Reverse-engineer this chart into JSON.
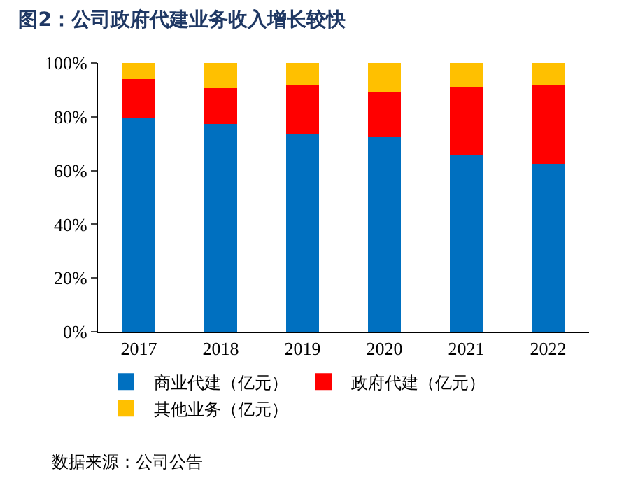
{
  "chart_data": {
    "type": "bar",
    "title": "图2：公司政府代建业务收入增长较快",
    "categories": [
      "2017",
      "2018",
      "2019",
      "2020",
      "2021",
      "2022"
    ],
    "series": [
      {
        "name": "商业代建（亿元）",
        "color": "#0070c0",
        "values": [
          79.3,
          77.3,
          73.7,
          72.4,
          65.9,
          62.6
        ]
      },
      {
        "name": "政府代建（亿元）",
        "color": "#ff0000",
        "values": [
          14.7,
          13.4,
          17.9,
          16.8,
          25.2,
          29.4
        ]
      },
      {
        "name": "其他业务（亿元）",
        "color": "#ffc000",
        "values": [
          6,
          9.3,
          8.4,
          10.8,
          8.9,
          8
        ]
      }
    ],
    "stacked": true,
    "ylim": [
      0,
      100
    ],
    "yticks": [
      {
        "value": 0,
        "label": "0%"
      },
      {
        "value": 20,
        "label": "20%"
      },
      {
        "value": 40,
        "label": "40%"
      },
      {
        "value": 60,
        "label": "60%"
      },
      {
        "value": 80,
        "label": "80%"
      },
      {
        "value": 100,
        "label": "100%"
      }
    ],
    "grid": false,
    "legend": "bottom",
    "annotations": [
      "数据来源：公司公告"
    ]
  }
}
